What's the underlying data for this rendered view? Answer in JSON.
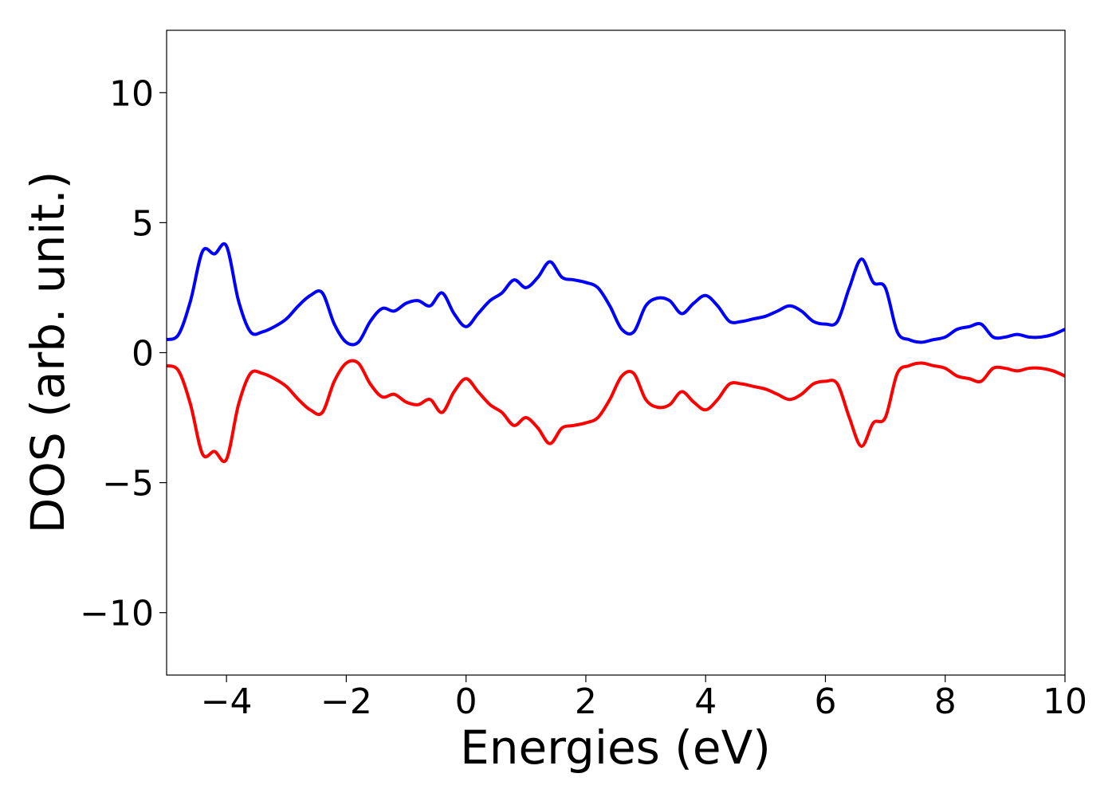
{
  "chart_data": {
    "type": "line",
    "title": "",
    "xlabel": "Energies (eV)",
    "ylabel": "DOS (arb. unit.)",
    "xlim": [
      -5,
      10
    ],
    "ylim": [
      -12.4,
      12.4
    ],
    "grid": false,
    "legend": "none",
    "x_ticks": [
      {
        "value": -4,
        "label": "−4"
      },
      {
        "value": -2,
        "label": "−2"
      },
      {
        "value": 0,
        "label": "0"
      },
      {
        "value": 2,
        "label": "2"
      },
      {
        "value": 4,
        "label": "4"
      },
      {
        "value": 6,
        "label": "6"
      },
      {
        "value": 8,
        "label": "8"
      },
      {
        "value": 10,
        "label": "10"
      }
    ],
    "y_ticks": [
      {
        "value": 10,
        "label": "10"
      },
      {
        "value": 5,
        "label": "5"
      },
      {
        "value": 0,
        "label": "0"
      },
      {
        "value": -5,
        "label": "−5"
      },
      {
        "value": -10,
        "label": "−10"
      }
    ],
    "series": [
      {
        "color": "#0000ff",
        "x": [
          -5.0,
          -4.8,
          -4.6,
          -4.4,
          -4.2,
          -4.0,
          -3.8,
          -3.6,
          -3.4,
          -3.2,
          -3.0,
          -2.8,
          -2.6,
          -2.4,
          -2.2,
          -2.0,
          -1.8,
          -1.6,
          -1.4,
          -1.2,
          -1.0,
          -0.8,
          -0.6,
          -0.4,
          -0.2,
          0.0,
          0.2,
          0.4,
          0.6,
          0.8,
          1.0,
          1.2,
          1.4,
          1.6,
          1.8,
          2.0,
          2.2,
          2.4,
          2.6,
          2.8,
          3.0,
          3.2,
          3.4,
          3.6,
          3.8,
          4.0,
          4.2,
          4.4,
          4.6,
          4.8,
          5.0,
          5.2,
          5.4,
          5.6,
          5.8,
          6.0,
          6.2,
          6.4,
          6.6,
          6.8,
          7.0,
          7.2,
          7.4,
          7.6,
          7.8,
          8.0,
          8.2,
          8.4,
          8.6,
          8.8,
          9.0,
          9.2,
          9.4,
          9.6,
          9.8,
          10.0
        ],
        "values": [
          0.5,
          0.7,
          2.0,
          3.9,
          3.8,
          4.1,
          2.0,
          0.8,
          0.8,
          1.0,
          1.3,
          1.8,
          2.2,
          2.3,
          1.1,
          0.4,
          0.4,
          1.2,
          1.7,
          1.6,
          1.9,
          2.0,
          1.8,
          2.3,
          1.5,
          1.0,
          1.5,
          2.0,
          2.3,
          2.8,
          2.5,
          2.9,
          3.5,
          2.9,
          2.8,
          2.7,
          2.5,
          1.8,
          0.9,
          0.8,
          1.8,
          2.1,
          2.0,
          1.5,
          1.9,
          2.2,
          1.8,
          1.2,
          1.2,
          1.3,
          1.4,
          1.6,
          1.8,
          1.6,
          1.2,
          1.1,
          1.2,
          2.5,
          3.6,
          2.7,
          2.5,
          0.8,
          0.5,
          0.4,
          0.5,
          0.6,
          0.9,
          1.0,
          1.1,
          0.6,
          0.6,
          0.7,
          0.6,
          0.6,
          0.7,
          0.9
        ]
      },
      {
        "color": "#ff0000",
        "x": [
          -5.0,
          -4.8,
          -4.6,
          -4.4,
          -4.2,
          -4.0,
          -3.8,
          -3.6,
          -3.4,
          -3.2,
          -3.0,
          -2.8,
          -2.6,
          -2.4,
          -2.2,
          -2.0,
          -1.8,
          -1.6,
          -1.4,
          -1.2,
          -1.0,
          -0.8,
          -0.6,
          -0.4,
          -0.2,
          0.0,
          0.2,
          0.4,
          0.6,
          0.8,
          1.0,
          1.2,
          1.4,
          1.6,
          1.8,
          2.0,
          2.2,
          2.4,
          2.6,
          2.8,
          3.0,
          3.2,
          3.4,
          3.6,
          3.8,
          4.0,
          4.2,
          4.4,
          4.6,
          4.8,
          5.0,
          5.2,
          5.4,
          5.6,
          5.8,
          6.0,
          6.2,
          6.4,
          6.6,
          6.8,
          7.0,
          7.2,
          7.4,
          7.6,
          7.8,
          8.0,
          8.2,
          8.4,
          8.6,
          8.8,
          9.0,
          9.2,
          9.4,
          9.6,
          9.8,
          10.0
        ],
        "values": [
          -0.5,
          -0.7,
          -2.0,
          -3.9,
          -3.8,
          -4.1,
          -2.0,
          -0.8,
          -0.8,
          -1.0,
          -1.3,
          -1.8,
          -2.2,
          -2.3,
          -1.1,
          -0.4,
          -0.4,
          -1.2,
          -1.7,
          -1.6,
          -1.9,
          -2.0,
          -1.8,
          -2.3,
          -1.5,
          -1.0,
          -1.5,
          -2.0,
          -2.3,
          -2.8,
          -2.5,
          -2.9,
          -3.5,
          -2.9,
          -2.8,
          -2.7,
          -2.5,
          -1.8,
          -0.9,
          -0.8,
          -1.8,
          -2.1,
          -2.0,
          -1.5,
          -1.9,
          -2.2,
          -1.8,
          -1.2,
          -1.2,
          -1.3,
          -1.4,
          -1.6,
          -1.8,
          -1.6,
          -1.2,
          -1.1,
          -1.2,
          -2.5,
          -3.6,
          -2.7,
          -2.5,
          -0.8,
          -0.5,
          -0.4,
          -0.5,
          -0.6,
          -0.9,
          -1.0,
          -1.1,
          -0.6,
          -0.6,
          -0.7,
          -0.6,
          -0.6,
          -0.7,
          -0.9
        ]
      }
    ]
  }
}
